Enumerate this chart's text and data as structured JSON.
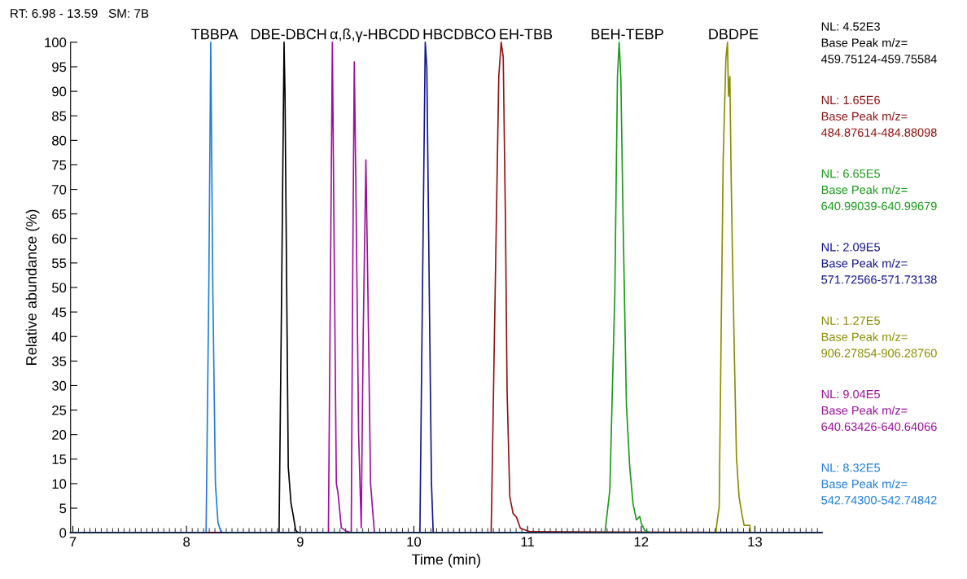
{
  "chart_data": {
    "type": "line",
    "xlabel": "Time (min)",
    "ylabel": "Relative abundance (%)",
    "xlim": [
      6.98,
      13.59
    ],
    "xticks": [
      7,
      8,
      9,
      10,
      11,
      12,
      13
    ],
    "ylim": [
      0,
      100
    ],
    "yticks": [
      0,
      5,
      10,
      15,
      20,
      25,
      30,
      35,
      40,
      45,
      50,
      55,
      60,
      65,
      70,
      75,
      80,
      85,
      90,
      95,
      100
    ],
    "grid": false,
    "marker": "none",
    "line_style": "solid",
    "annotations": [
      "RT: 6.98 - 13.59   SM: 7B",
      "NL: 4.52E3\nBase Peak m/z=\n459.75124-459.75584",
      "NL: 1.65E6\nBase Peak m/z=\n484.87614-484.88098",
      "NL: 6.65E5\nBase Peak m/z=\n640.99039-640.99679",
      "NL: 2.09E5\nBase Peak m/z=\n571.72566-571.73138",
      "NL: 1.27E5\nBase Peak m/z=\n906.27854-906.28760",
      "NL: 9.04E5\nBase Peak m/z=\n640.63426-640.64066",
      "NL: 8.32E5\nBase Peak m/z=\n542.74300-542.74842"
    ],
    "series": [
      {
        "name": "DBE-DBCH",
        "color": "#000000",
        "x": [
          6.98,
          8.814,
          8.837,
          8.858,
          8.866,
          8.881,
          8.895,
          8.919,
          8.939,
          8.96,
          8.983,
          13.59
        ],
        "values": [
          0,
          0,
          50,
          100,
          90,
          50,
          13.4,
          6,
          3.5,
          0.5,
          0,
          0
        ]
      },
      {
        "name": "EH-TBB",
        "color": "#8e1414",
        "x": [
          6.98,
          10.68,
          10.72,
          10.747,
          10.768,
          10.786,
          10.806,
          10.82,
          10.844,
          10.873,
          10.902,
          10.937,
          11.025,
          13.59
        ],
        "values": [
          0,
          0,
          56,
          93,
          100,
          97,
          63,
          29,
          7.3,
          3.9,
          3.2,
          0.9,
          0.2,
          0
        ]
      },
      {
        "name": "BEH-TEBP",
        "color": "#1a9a1a",
        "x": [
          6.98,
          11.681,
          11.724,
          11.768,
          11.791,
          11.806,
          11.821,
          11.841,
          11.87,
          11.899,
          11.928,
          11.958,
          11.987,
          12.001,
          12.03,
          12.074,
          13.59
        ],
        "values": [
          0,
          0,
          8.7,
          49,
          93,
          100,
          92.6,
          63,
          25.9,
          13.4,
          5.9,
          2.6,
          3.3,
          1.9,
          0.5,
          0,
          0
        ]
      },
      {
        "name": "HBCDBCO",
        "color": "#14148c",
        "x": [
          6.98,
          10.053,
          10.076,
          10.1,
          10.114,
          10.138,
          10.155,
          10.17,
          13.59
        ],
        "values": [
          0,
          0,
          50,
          100,
          95,
          44,
          10,
          0,
          0
        ]
      },
      {
        "name": "DBDPE",
        "color": "#8c8c00",
        "x": [
          6.98,
          12.657,
          12.666,
          12.686,
          12.701,
          12.721,
          12.745,
          12.759,
          12.768,
          12.78,
          12.791,
          12.803,
          12.82,
          12.838,
          12.861,
          12.885,
          12.905,
          12.955,
          12.963,
          13.59
        ],
        "values": [
          0,
          0,
          1.9,
          5.3,
          35.7,
          76,
          96.6,
          100,
          89,
          93,
          73,
          56,
          35.7,
          15.4,
          7.3,
          3.9,
          1.5,
          1.5,
          0,
          0
        ]
      },
      {
        "name": "α,ß,γ-HBCDD",
        "color": "#9a109a",
        "x": [
          6.98,
          9.248,
          9.269,
          9.283,
          9.298,
          9.318,
          9.333,
          9.362,
          9.406,
          9.449,
          9.464,
          9.476,
          9.49,
          9.514,
          9.537,
          9.554,
          9.578,
          9.595,
          9.619,
          9.653,
          13.59
        ],
        "values": [
          0,
          0,
          60,
          100,
          60,
          10,
          8,
          1,
          0.3,
          0,
          60,
          96,
          70,
          20,
          1,
          40,
          76,
          50,
          10,
          0,
          0
        ]
      },
      {
        "name": "TBBPA",
        "color": "#1f7ed8",
        "x": [
          6.98,
          8.172,
          8.196,
          8.213,
          8.231,
          8.254,
          8.277,
          8.298,
          8.318,
          13.59
        ],
        "values": [
          0,
          0,
          50,
          100,
          50,
          10,
          2,
          0.5,
          0,
          0
        ]
      }
    ]
  }
}
